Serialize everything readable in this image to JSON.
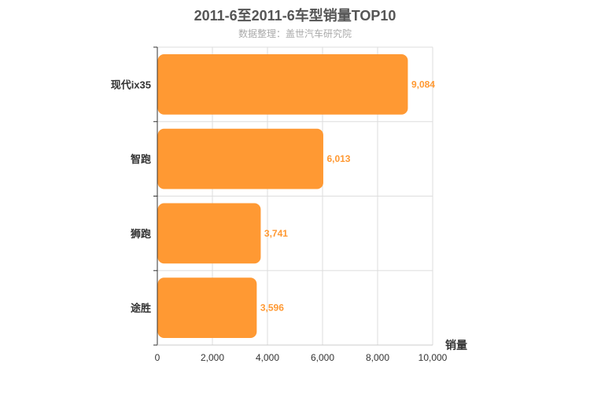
{
  "chart_data": {
    "type": "bar",
    "orientation": "horizontal",
    "title": "2011-6至2011-6车型销量TOP10",
    "subtitle": "数据整理：盖世汽车研究院",
    "categories": [
      "现代ix35",
      "智跑",
      "狮跑",
      "途胜"
    ],
    "series": [
      {
        "values": [
          9084,
          6013,
          3741,
          3596
        ]
      }
    ],
    "value_labels": [
      "9,084",
      "6,013",
      "3,741",
      "3,596"
    ],
    "xlabel": "销量",
    "ylabel": "",
    "xlim": [
      0,
      10000
    ],
    "xticks": [
      0,
      2000,
      4000,
      6000,
      8000,
      10000
    ],
    "xtick_labels": [
      "0",
      "2,000",
      "4,000",
      "6,000",
      "8,000",
      "10,000"
    ],
    "grid": true,
    "legend": "none",
    "bar_color": "#ff9933"
  }
}
